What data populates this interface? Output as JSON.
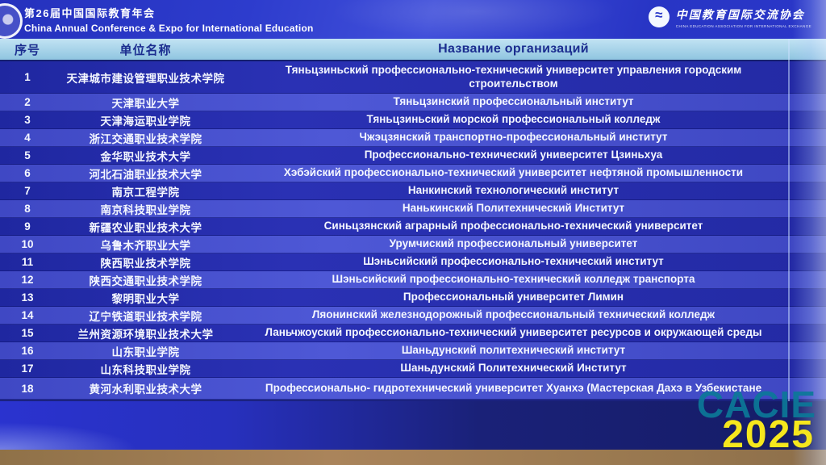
{
  "banner": {
    "title_zh": "第26届中国国际教育年会",
    "title_en": "China Annual Conference & Expo for International Education",
    "assoc_name_zh": "中国教育国际交流协会",
    "assoc_name_en": "CHINA EDUCATION ASSOCIATION FOR INTERNATIONAL EXCHANGE"
  },
  "table": {
    "headers": {
      "no": "序号",
      "org_zh": "单位名称",
      "org_ru": "Название организаций"
    },
    "rows": [
      {
        "no": "1",
        "zh": "天津城市建设管理职业技术学院",
        "ru": "Тяньцзиньский профессионально-технический университет управления городским строительством"
      },
      {
        "no": "2",
        "zh": "天津职业大学",
        "ru": "Тяньцзинский профессиональный институт"
      },
      {
        "no": "3",
        "zh": "天津海运职业学院",
        "ru": "Тяньцзиньский морской профессиональный колледж"
      },
      {
        "no": "4",
        "zh": "浙江交通职业技术学院",
        "ru": "Чжэцзянский транспортно-профессиональный  институт"
      },
      {
        "no": "5",
        "zh": "金华职业技术大学",
        "ru": "Профессионально-технический университет Цзиньхуа"
      },
      {
        "no": "6",
        "zh": "河北石油职业技术大学",
        "ru": "Хэбэйский профессионально-технический университет нефтяной промышленности"
      },
      {
        "no": "7",
        "zh": "南京工程学院",
        "ru": "Нанкинский технологический институт"
      },
      {
        "no": "8",
        "zh": "南京科技职业学院",
        "ru": "Нанькинский Политехнический Институт"
      },
      {
        "no": "9",
        "zh": "新疆农业职业技术大学",
        "ru": "Синьцзянский аграрный профессионально-технический университет"
      },
      {
        "no": "10",
        "zh": "乌鲁木齐职业大学",
        "ru": "Урумчиский профессиональный университет"
      },
      {
        "no": "11",
        "zh": "陕西职业技术学院",
        "ru": "Шэньсийский профессионально-технический институт"
      },
      {
        "no": "12",
        "zh": "陕西交通职业技术学院",
        "ru": "Шэньсийский профессионально-технический колледж транспорта"
      },
      {
        "no": "13",
        "zh": "黎明职业大学",
        "ru": "Профессиональный университет Лимин"
      },
      {
        "no": "14",
        "zh": "辽宁铁道职业技术学院",
        "ru": "Ляонинский железнодорожный профессиональный технический колледж"
      },
      {
        "no": "15",
        "zh": "兰州资源环境职业技术大学",
        "ru": "Ланьчжоуский профессионально-технический университет ресурсов и окружающей среды"
      },
      {
        "no": "16",
        "zh": "山东职业学院",
        "ru": "Шаньдунский политехнический институт"
      },
      {
        "no": "17",
        "zh": "山东科技职业学院",
        "ru": "Шаньдунский Политехнический Институт"
      },
      {
        "no": "18",
        "zh": "黄河水利职业技术大学",
        "ru": "Профессионально- гидротехнический  университет Хуанхэ (Мастерская Дахэ в Узбекистане"
      }
    ]
  },
  "watermark": {
    "brand": "CACIE",
    "year": "2025",
    "brand_color": "#0c7898",
    "year_color": "#f6e71d"
  },
  "colors": {
    "banner_blue": "#2d3ccd",
    "header_light_blue": "#a8d4ec",
    "row_dark": "#232aa4",
    "row_light": "#4e58d6"
  }
}
